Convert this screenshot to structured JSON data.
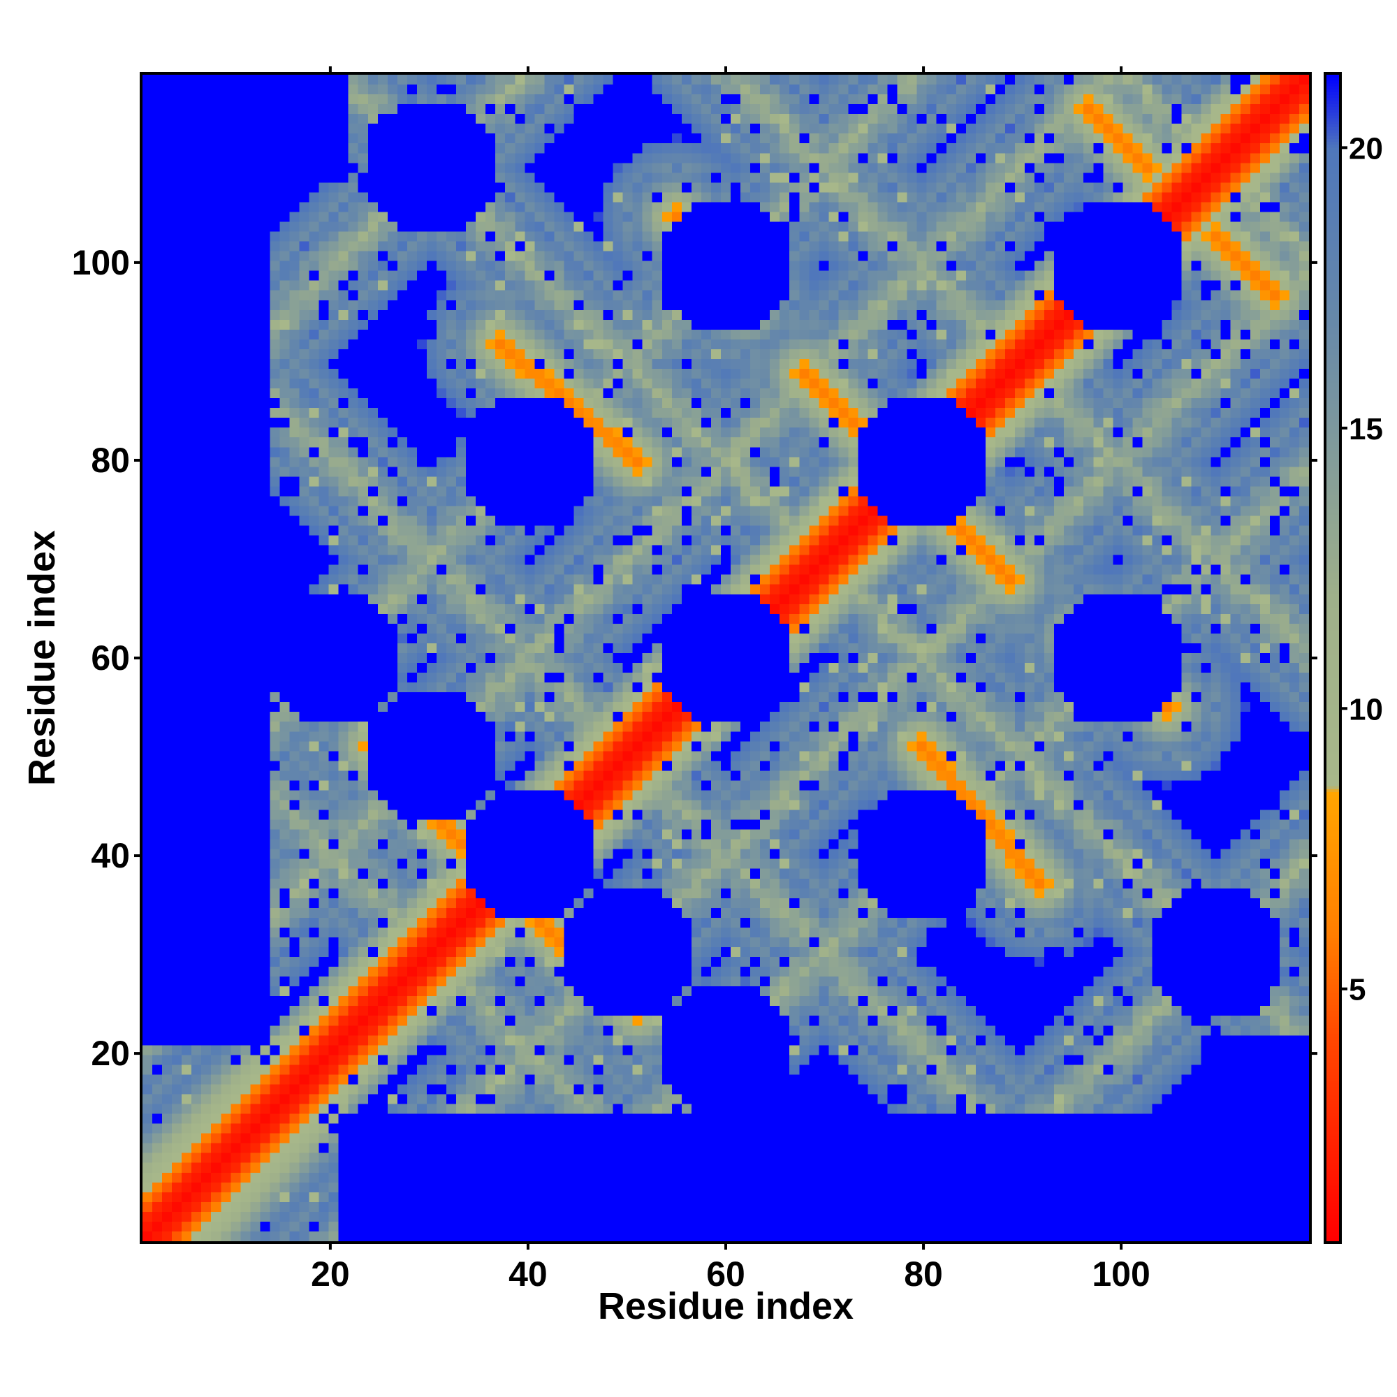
{
  "chart_data": {
    "type": "heatmap",
    "title": "",
    "xlabel": "Residue index",
    "ylabel": "Residue index",
    "n_residues": 119,
    "xlim": [
      1,
      119
    ],
    "ylim": [
      1,
      119
    ],
    "x_ticks": [
      20,
      40,
      60,
      80,
      100
    ],
    "y_ticks": [
      20,
      40,
      60,
      80,
      100
    ],
    "x_tick_labels": [
      "20",
      "40",
      "60",
      "80",
      "100"
    ],
    "y_tick_labels": [
      "20",
      "40",
      "60",
      "80",
      "100"
    ],
    "colorbar": {
      "min": 0.5,
      "max": 21.3,
      "ticks": [
        5,
        10,
        15,
        20
      ],
      "tick_labels": [
        "5",
        "10",
        "15",
        "20"
      ],
      "colors": [
        {
          "value": 0.5,
          "color": "#ff0000"
        },
        {
          "value": 4.0,
          "color": "#ff4500"
        },
        {
          "value": 6.0,
          "color": "#ff7f00"
        },
        {
          "value": 8.5,
          "color": "#ffa500"
        },
        {
          "value": 8.6,
          "color": "#a8b88a"
        },
        {
          "value": 12.0,
          "color": "#9fb08a"
        },
        {
          "value": 17.0,
          "color": "#6688aa"
        },
        {
          "value": 20.0,
          "color": "#4f77bb"
        },
        {
          "value": 21.3,
          "color": "#0000ff"
        }
      ]
    },
    "cap_value": 22,
    "diagonal_band": {
      "core_halfwidth": 1.8,
      "orange_halfwidth": 3.5,
      "halo_halfwidth": 6
    },
    "anti_diagonal_strands": [
      {
        "x0": 24,
        "y0": 51,
        "x1": 33,
        "y1": 41
      },
      {
        "x0": 42,
        "y0": 34,
        "x1": 51,
        "y1": 24
      },
      {
        "x0": 55,
        "y0": 105,
        "x1": 62,
        "y1": 96
      },
      {
        "x0": 37,
        "y0": 92,
        "x1": 51,
        "y1": 80
      },
      {
        "x0": 68,
        "y0": 89,
        "x1": 77,
        "y1": 80
      },
      {
        "x0": 81,
        "y0": 77,
        "x1": 89,
        "y1": 68
      },
      {
        "x0": 82,
        "y0": 50,
        "x1": 92,
        "y1": 37
      },
      {
        "x0": 96,
        "y0": 62,
        "x1": 104,
        "y1": 54
      },
      {
        "x0": 97,
        "y0": 116,
        "x1": 103,
        "y1": 110
      },
      {
        "x0": 110,
        "y0": 103,
        "x1": 115,
        "y1": 96
      }
    ],
    "hub_centers": [
      {
        "x": 20,
        "y": 60
      },
      {
        "x": 40,
        "y": 40
      },
      {
        "x": 60,
        "y": 60
      },
      {
        "x": 80,
        "y": 40
      },
      {
        "x": 100,
        "y": 20
      },
      {
        "x": 80,
        "y": 80
      },
      {
        "x": 60,
        "y": 100
      },
      {
        "x": 40,
        "y": 80
      },
      {
        "x": 100,
        "y": 60
      },
      {
        "x": 100,
        "y": 100
      },
      {
        "x": 120,
        "y": 40
      },
      {
        "x": 120,
        "y": 80
      },
      {
        "x": 30,
        "y": 110
      },
      {
        "x": 30,
        "y": 50
      }
    ]
  }
}
